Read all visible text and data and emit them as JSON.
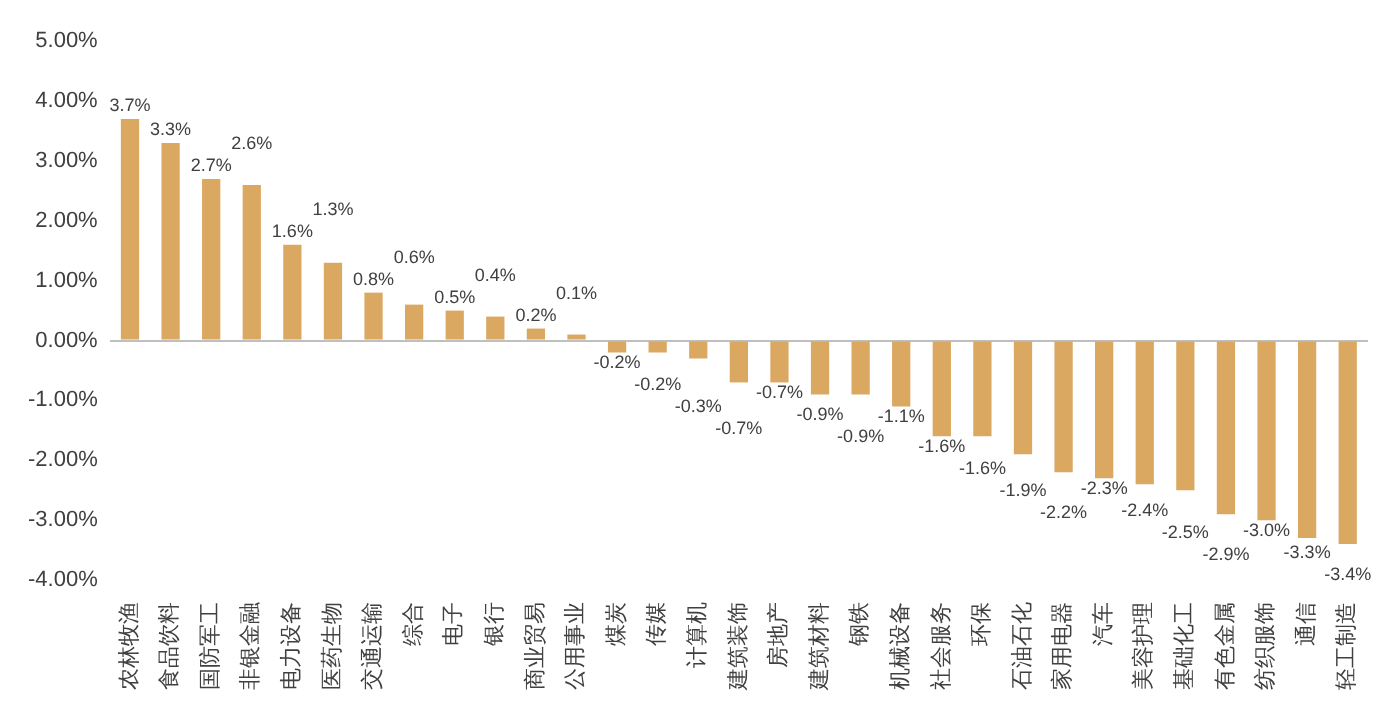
{
  "chart_data": {
    "type": "bar",
    "categories": [
      "农林牧渔",
      "食品饮料",
      "国防军工",
      "非银金融",
      "电力设备",
      "医药生物",
      "交通运输",
      "综合",
      "电子",
      "银行",
      "商业贸易",
      "公用事业",
      "煤炭",
      "传媒",
      "计算机",
      "建筑装饰",
      "房地产",
      "建筑材料",
      "钢铁",
      "机械设备",
      "社会服务",
      "环保",
      "石油石化",
      "家用电器",
      "汽车",
      "美容护理",
      "基础化工",
      "有色金属",
      "纺织服饰",
      "通信",
      "轻工制造"
    ],
    "values": [
      3.7,
      3.3,
      2.7,
      2.6,
      1.6,
      1.3,
      0.8,
      0.6,
      0.5,
      0.4,
      0.2,
      0.1,
      -0.2,
      -0.2,
      -0.3,
      -0.7,
      -0.7,
      -0.9,
      -0.9,
      -1.1,
      -1.6,
      -1.6,
      -1.9,
      -2.2,
      -2.3,
      -2.4,
      -2.5,
      -2.9,
      -3.0,
      -3.3,
      -3.4
    ],
    "value_labels": [
      "3.7%",
      "3.3%",
      "2.7%",
      "2.6%",
      "1.6%",
      "1.3%",
      "0.8%",
      "0.6%",
      "0.5%",
      "0.4%",
      "0.2%",
      "0.1%",
      "-0.2%",
      "-0.2%",
      "-0.3%",
      "-0.7%",
      "-0.7%",
      "-0.9%",
      "-0.9%",
      "-1.1%",
      "-1.6%",
      "-1.6%",
      "-1.9%",
      "-2.2%",
      "-2.3%",
      "-2.4%",
      "-2.5%",
      "-2.9%",
      "-3.0%",
      "-3.3%",
      "-3.4%"
    ],
    "color": "#dba862",
    "ylim": [
      -4,
      5
    ],
    "yticks": [
      {
        "value": -4,
        "label": "-4.00%"
      },
      {
        "value": -3,
        "label": "-3.00%"
      },
      {
        "value": -2,
        "label": "-2.00%"
      },
      {
        "value": -1,
        "label": "-1.00%"
      },
      {
        "value": 0,
        "label": "0.00%"
      },
      {
        "value": 1,
        "label": "1.00%"
      },
      {
        "value": 2,
        "label": "2.00%"
      },
      {
        "value": 3,
        "label": "3.00%"
      },
      {
        "value": 4,
        "label": "4.00%"
      },
      {
        "value": 5,
        "label": "5.00%"
      }
    ]
  }
}
